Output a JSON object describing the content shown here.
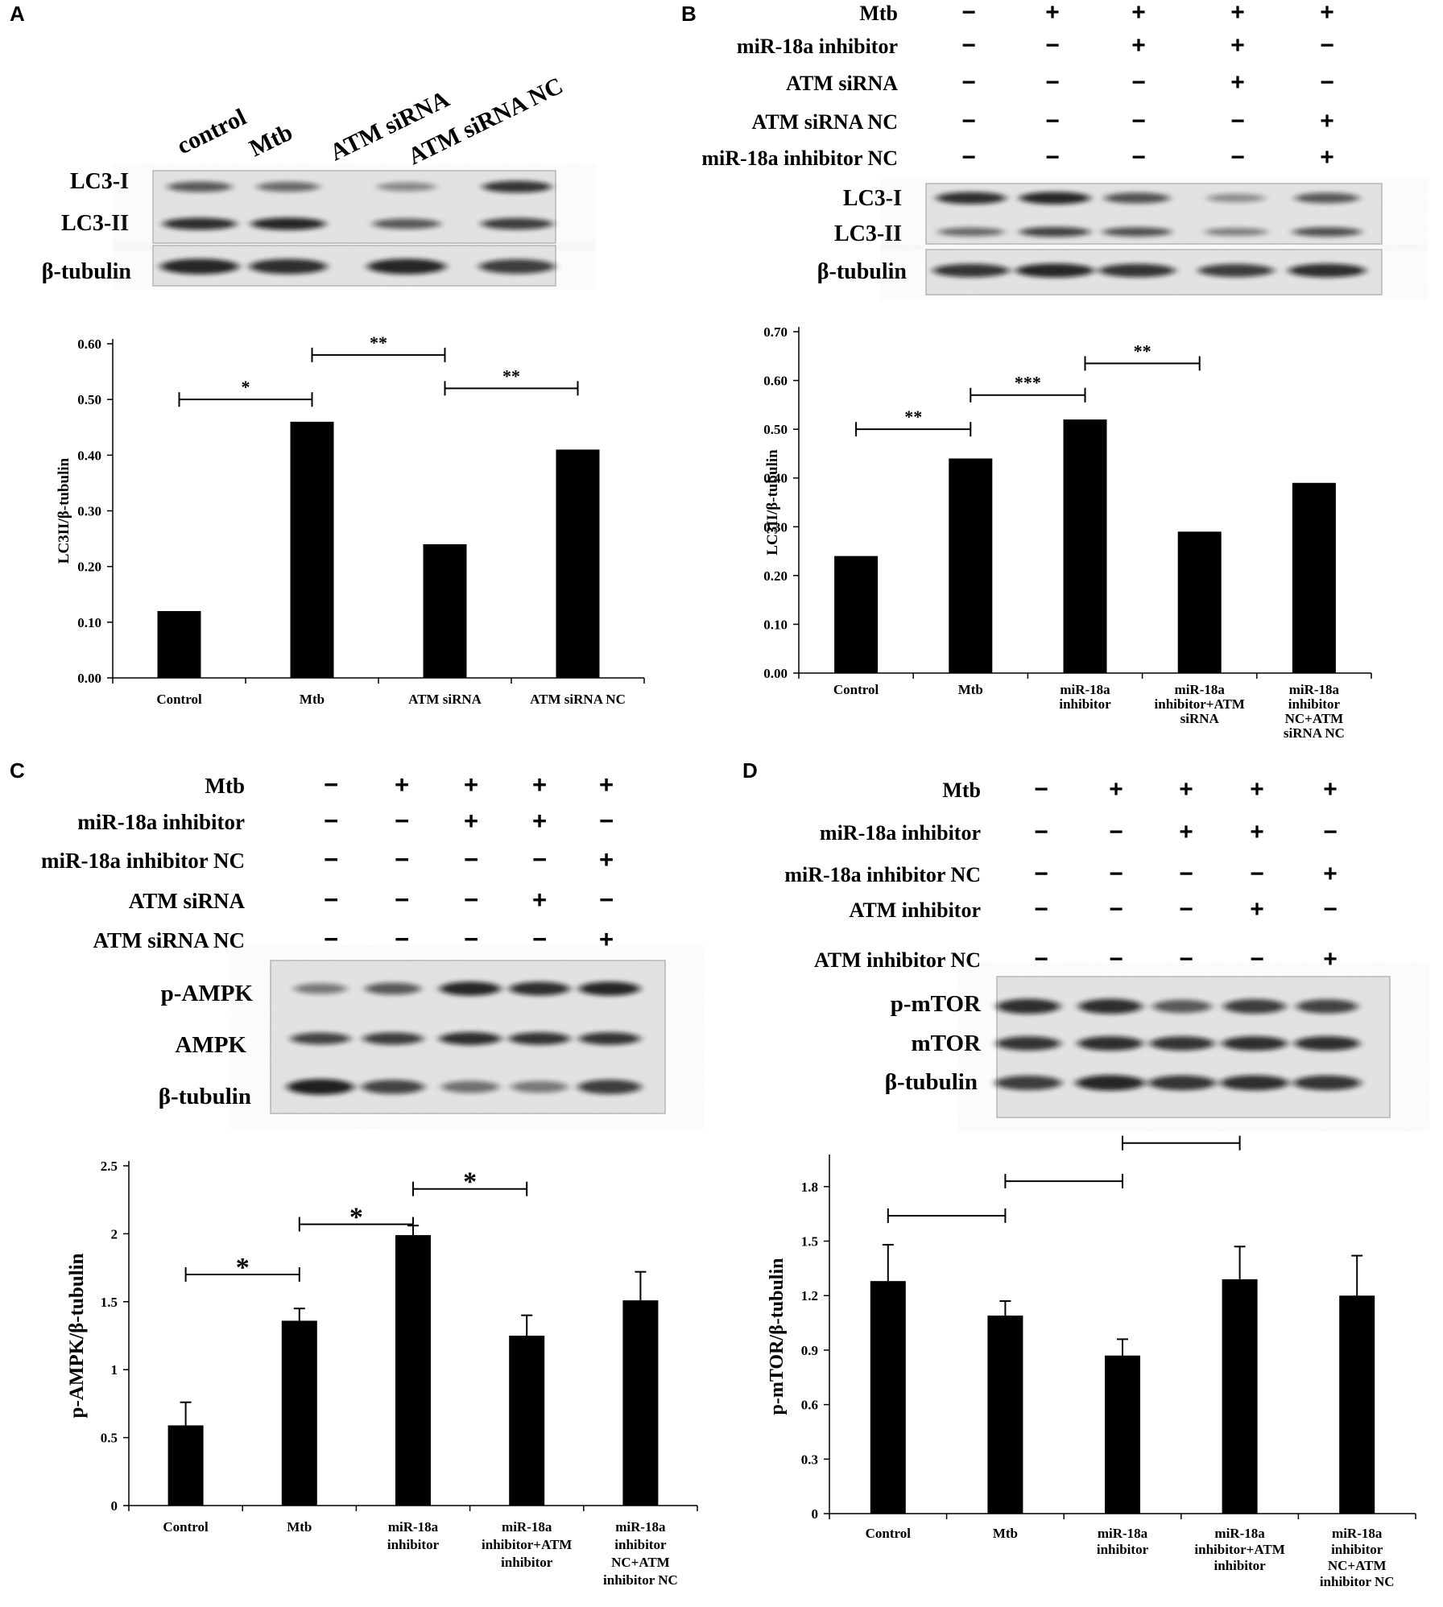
{
  "panels": [
    {
      "letter": "A",
      "blot": {
        "lane_labels": [
          "control",
          "Mtb",
          "ATM siRNA",
          "ATM siRNA NC"
        ],
        "rows": [
          "LC3-I",
          "LC3-II",
          "β-tubulin"
        ]
      }
    },
    {
      "letter": "B",
      "conditions": [
        {
          "label": "Mtb",
          "signs": [
            "−",
            "+",
            "+",
            "+",
            "+"
          ]
        },
        {
          "label": "miR-18a inhibitor",
          "signs": [
            "−",
            "−",
            "+",
            "+",
            "−"
          ]
        },
        {
          "label": "ATM siRNA",
          "signs": [
            "−",
            "−",
            "−",
            "+",
            "−"
          ]
        },
        {
          "label": "ATM siRNA NC",
          "signs": [
            "−",
            "−",
            "−",
            "−",
            "+"
          ]
        },
        {
          "label": "miR-18a inhibitor NC",
          "signs": [
            "−",
            "−",
            "−",
            "−",
            "+"
          ]
        }
      ],
      "blot": {
        "rows": [
          "LC3-I",
          "LC3-II",
          "β-tubulin"
        ]
      }
    },
    {
      "letter": "C",
      "conditions": [
        {
          "label": "Mtb",
          "signs": [
            "−",
            "+",
            "+",
            "+",
            "+"
          ]
        },
        {
          "label": "miR-18a inhibitor",
          "signs": [
            "−",
            "−",
            "+",
            "+",
            "−"
          ]
        },
        {
          "label": "miR-18a inhibitor NC",
          "signs": [
            "−",
            "−",
            "−",
            "−",
            "+"
          ]
        },
        {
          "label": "ATM siRNA",
          "signs": [
            "−",
            "−",
            "−",
            "+",
            "−"
          ]
        },
        {
          "label": "ATM siRNA NC",
          "signs": [
            "−",
            "−",
            "−",
            "−",
            "+"
          ]
        }
      ],
      "blot": {
        "rows": [
          "p-AMPK",
          "AMPK",
          "β-tubulin"
        ]
      }
    },
    {
      "letter": "D",
      "conditions": [
        {
          "label": "Mtb",
          "signs": [
            "−",
            "+",
            "+",
            "+",
            "+"
          ]
        },
        {
          "label": "miR-18a inhibitor",
          "signs": [
            "−",
            "−",
            "+",
            "+",
            "−"
          ]
        },
        {
          "label": "miR-18a inhibitor NC",
          "signs": [
            "−",
            "−",
            "−",
            "−",
            "+"
          ]
        },
        {
          "label": "ATM inhibitor",
          "signs": [
            "−",
            "−",
            "−",
            "+",
            "−"
          ]
        },
        {
          "label": "ATM inhibitor NC",
          "signs": [
            "−",
            "−",
            "−",
            "−",
            "+"
          ]
        }
      ],
      "blot": {
        "rows": [
          "p-mTOR",
          "mTOR",
          "β-tubulin"
        ]
      }
    }
  ],
  "chart_data": [
    {
      "panel": "A",
      "type": "bar",
      "ylabel": "LC3II/β-tubulin",
      "ylim": [
        0,
        0.6
      ],
      "yticks": [
        "0.00",
        "0.10",
        "0.20",
        "0.30",
        "0.40",
        "0.50",
        "0.60"
      ],
      "categories": [
        [
          "Control"
        ],
        [
          "Mtb"
        ],
        [
          "ATM siRNA"
        ],
        [
          "ATM siRNA NC"
        ]
      ],
      "values": [
        0.12,
        0.46,
        0.24,
        0.41
      ],
      "significance": [
        {
          "from": 0,
          "to": 1,
          "label": "*",
          "y": 0.5
        },
        {
          "from": 1,
          "to": 2,
          "label": "**",
          "y": 0.58
        },
        {
          "from": 2,
          "to": 3,
          "label": "**",
          "y": 0.52
        }
      ]
    },
    {
      "panel": "B",
      "type": "bar",
      "ylabel": "LC3II/β-tubulin",
      "ylim": [
        0,
        0.7
      ],
      "yticks": [
        "0.00",
        "0.10",
        "0.20",
        "0.30",
        "0.40",
        "0.50",
        "0.60",
        "0.70"
      ],
      "categories": [
        [
          "Control"
        ],
        [
          "Mtb"
        ],
        [
          "miR-18a",
          "inhibitor"
        ],
        [
          "miR-18a",
          "inhibitor+ATM",
          "siRNA"
        ],
        [
          "miR-18a",
          "inhibitor",
          "NC+ATM",
          "siRNA NC"
        ]
      ],
      "values": [
        0.24,
        0.44,
        0.52,
        0.29,
        0.39
      ],
      "significance": [
        {
          "from": 0,
          "to": 1,
          "label": "**",
          "y": 0.5
        },
        {
          "from": 1,
          "to": 2,
          "label": "***",
          "y": 0.57
        },
        {
          "from": 2,
          "to": 3,
          "label": "**",
          "y": 0.635
        }
      ]
    },
    {
      "panel": "C",
      "type": "bar",
      "ylabel": "p-AMPK/β-tubulin",
      "ylim": [
        0,
        2.5
      ],
      "yticks": [
        "0",
        "0.5",
        "1",
        "1.5",
        "2",
        "2.5"
      ],
      "categories": [
        [
          "Control"
        ],
        [
          "Mtb"
        ],
        [
          "miR-18a",
          "inhibitor"
        ],
        [
          "miR-18a",
          "inhibitor+ATM",
          "inhibitor"
        ],
        [
          "miR-18a",
          "inhibitor",
          "NC+ATM",
          "inhibitor NC"
        ]
      ],
      "values": [
        0.59,
        1.36,
        1.99,
        1.25,
        1.51
      ],
      "errors": [
        0.17,
        0.09,
        0.07,
        0.15,
        0.21
      ],
      "significance": [
        {
          "from": 0,
          "to": 1,
          "label": "*",
          "y": 1.7
        },
        {
          "from": 1,
          "to": 2,
          "label": "*",
          "y": 2.07
        },
        {
          "from": 2,
          "to": 3,
          "label": "*",
          "y": 2.33
        }
      ]
    },
    {
      "panel": "D",
      "type": "bar",
      "ylabel": "p-mTOR/β-tubulin",
      "ylim": [
        0,
        1.95
      ],
      "yticks": [
        "0",
        "0.3",
        "0.6",
        "0.9",
        "1.2",
        "1.5",
        "1.8"
      ],
      "categories": [
        [
          "Control"
        ],
        [
          "Mtb"
        ],
        [
          "miR-18a",
          "inhibitor"
        ],
        [
          "miR-18a",
          "inhibitor+ATM",
          "inhibitor"
        ],
        [
          "miR-18a",
          "inhibitor",
          "NC+ATM",
          "inhibitor NC"
        ]
      ],
      "values": [
        1.28,
        1.09,
        0.87,
        1.29,
        1.2
      ],
      "errors": [
        0.2,
        0.08,
        0.09,
        0.18,
        0.22
      ],
      "significance": [
        {
          "from": 0,
          "to": 1,
          "label": "",
          "y": 1.64
        },
        {
          "from": 1,
          "to": 2,
          "label": "",
          "y": 1.83
        },
        {
          "from": 2,
          "to": 3,
          "label": "",
          "y": 2.04
        }
      ]
    }
  ]
}
